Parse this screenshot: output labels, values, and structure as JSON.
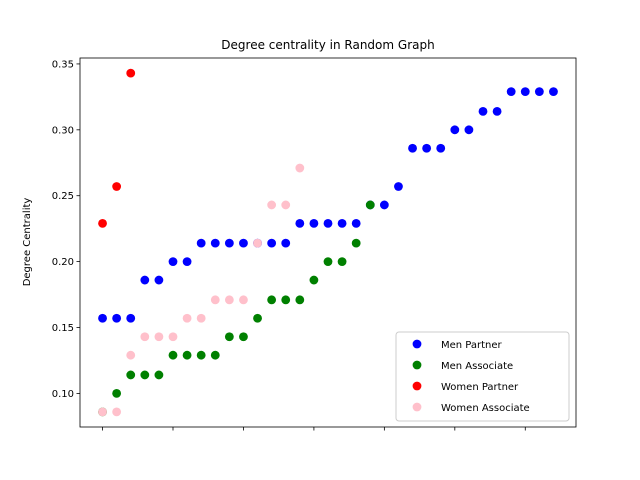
{
  "chart_data": {
    "type": "scatter",
    "title": "Degree centrality in Random Graph",
    "xlabel": "",
    "ylabel": "Degree Centrality",
    "xlim": [
      -1.6,
      33.6
    ],
    "ylim": [
      0.0745,
      0.3545
    ],
    "yticks": [
      "0.10",
      "0.15",
      "0.20",
      "0.25",
      "0.30",
      "0.35"
    ],
    "ytick_values": [
      0.1,
      0.15,
      0.2,
      0.25,
      0.3,
      0.35
    ],
    "xtick_values": [
      0,
      5,
      10,
      15,
      20,
      25,
      30
    ],
    "grid": false,
    "legend_position": "lower-right",
    "series": [
      {
        "name": "Men Partner",
        "color": "#0000ff",
        "points": [
          [
            0,
            0.157
          ],
          [
            1,
            0.157
          ],
          [
            2,
            0.157
          ],
          [
            3,
            0.186
          ],
          [
            4,
            0.186
          ],
          [
            5,
            0.2
          ],
          [
            6,
            0.2
          ],
          [
            7,
            0.214
          ],
          [
            8,
            0.214
          ],
          [
            9,
            0.214
          ],
          [
            10,
            0.214
          ],
          [
            11,
            0.214
          ],
          [
            12,
            0.214
          ],
          [
            13,
            0.214
          ],
          [
            14,
            0.229
          ],
          [
            15,
            0.229
          ],
          [
            16,
            0.229
          ],
          [
            17,
            0.229
          ],
          [
            18,
            0.229
          ],
          [
            19,
            0.243
          ],
          [
            20,
            0.243
          ],
          [
            21,
            0.257
          ],
          [
            22,
            0.286
          ],
          [
            23,
            0.286
          ],
          [
            24,
            0.286
          ],
          [
            25,
            0.3
          ],
          [
            26,
            0.3
          ],
          [
            27,
            0.314
          ],
          [
            28,
            0.314
          ],
          [
            29,
            0.329
          ],
          [
            30,
            0.329
          ],
          [
            31,
            0.329
          ],
          [
            32,
            0.329
          ]
        ]
      },
      {
        "name": "Men Associate",
        "color": "#008000",
        "points": [
          [
            0,
            0.086
          ],
          [
            1,
            0.1
          ],
          [
            2,
            0.114
          ],
          [
            3,
            0.114
          ],
          [
            4,
            0.114
          ],
          [
            5,
            0.129
          ],
          [
            6,
            0.129
          ],
          [
            7,
            0.129
          ],
          [
            8,
            0.129
          ],
          [
            9,
            0.143
          ],
          [
            10,
            0.143
          ],
          [
            11,
            0.157
          ],
          [
            12,
            0.171
          ],
          [
            13,
            0.171
          ],
          [
            14,
            0.171
          ],
          [
            15,
            0.186
          ],
          [
            16,
            0.2
          ],
          [
            17,
            0.2
          ],
          [
            18,
            0.214
          ],
          [
            19,
            0.243
          ]
        ]
      },
      {
        "name": "Women Partner",
        "color": "#ff0000",
        "points": [
          [
            0,
            0.229
          ],
          [
            1,
            0.257
          ],
          [
            2,
            0.343
          ]
        ]
      },
      {
        "name": "Women Associate",
        "color": "#ffc0cb",
        "points": [
          [
            0,
            0.086
          ],
          [
            1,
            0.086
          ],
          [
            2,
            0.129
          ],
          [
            3,
            0.143
          ],
          [
            4,
            0.143
          ],
          [
            5,
            0.143
          ],
          [
            6,
            0.157
          ],
          [
            7,
            0.157
          ],
          [
            8,
            0.171
          ],
          [
            9,
            0.171
          ],
          [
            10,
            0.171
          ],
          [
            11,
            0.214
          ],
          [
            12,
            0.243
          ],
          [
            13,
            0.243
          ],
          [
            14,
            0.271
          ]
        ]
      }
    ]
  }
}
